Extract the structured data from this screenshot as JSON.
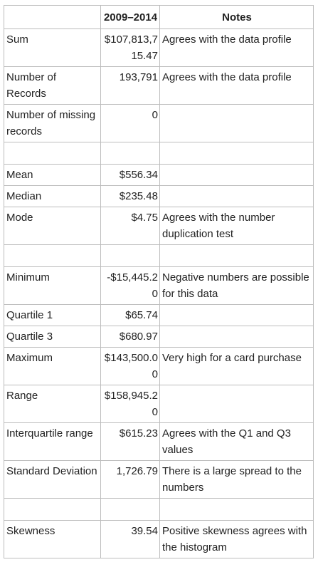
{
  "table": {
    "headers": [
      "",
      "2009–2014",
      "Notes"
    ],
    "rows": [
      {
        "label": "Sum",
        "value": "$107,813,715.47",
        "note": "Agrees with the data profile"
      },
      {
        "label": "Number of Records",
        "value": "193,791",
        "note": "Agrees with the data profile"
      },
      {
        "label": "Number of missing records",
        "value": "0",
        "note": ""
      },
      {
        "label": "",
        "value": "",
        "note": ""
      },
      {
        "label": "Mean",
        "value": "$556.34",
        "note": ""
      },
      {
        "label": "Median",
        "value": "$235.48",
        "note": ""
      },
      {
        "label": "Mode",
        "value": "$4.75",
        "note": "Agrees with the number duplication test"
      },
      {
        "label": "",
        "value": "",
        "note": ""
      },
      {
        "label": "Minimum",
        "value": "-$15,445.20",
        "note": "Negative numbers are possible for this data"
      },
      {
        "label": "Quartile 1",
        "value": "$65.74",
        "note": ""
      },
      {
        "label": "Quartile 3",
        "value": "$680.97",
        "note": ""
      },
      {
        "label": "Maximum",
        "value": "$143,500.00",
        "note": "Very high for a card purchase"
      },
      {
        "label": "Range",
        "value": "$158,945.20",
        "note": ""
      },
      {
        "label": "Interquartile range",
        "value": "$615.23",
        "note": "Agrees with the Q1 and Q3 values"
      },
      {
        "label": "Standard Deviation",
        "value": "1,726.79",
        "note": "There is a large spread to the numbers"
      },
      {
        "label": "",
        "value": "",
        "note": ""
      },
      {
        "label": "Skewness",
        "value": "39.54",
        "note": "Positive skewness agrees with the histogram"
      }
    ]
  }
}
